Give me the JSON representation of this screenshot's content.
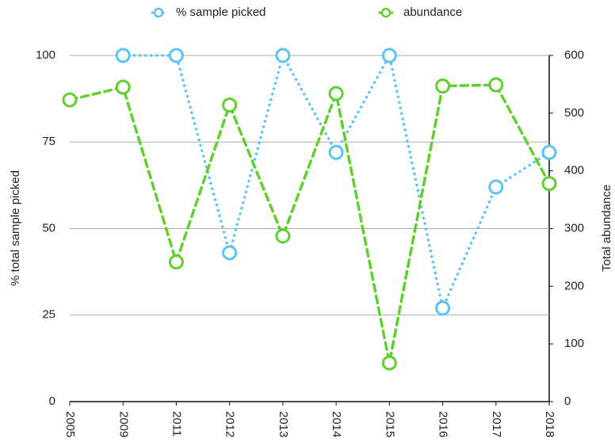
{
  "chart_data": {
    "type": "line",
    "categories": [
      "2005",
      "2009",
      "2011",
      "2012",
      "2013",
      "2014",
      "2015",
      "2016",
      "2017",
      "2018"
    ],
    "series": [
      {
        "name": "% sample picked",
        "color": "#5bc3f2",
        "line_style": "dotted",
        "axis": "y",
        "values": [
          null,
          100,
          100,
          43,
          100,
          72,
          100,
          27,
          62,
          72
        ]
      },
      {
        "name": "abundance",
        "color": "#5fcf2e",
        "line_style": "dashed",
        "axis": "y2",
        "values": [
          523,
          545,
          242,
          514,
          287,
          534,
          67,
          547,
          549,
          378
        ]
      }
    ],
    "ylabel": "% total sample picked",
    "y2label": "Total abundance",
    "ylim": [
      0,
      100
    ],
    "yticks": [
      0,
      25,
      50,
      75,
      100
    ],
    "y2lim": [
      0,
      600
    ],
    "y2ticks": [
      0,
      100,
      200,
      300,
      400,
      500,
      600
    ],
    "grid": true,
    "legend": "top"
  }
}
